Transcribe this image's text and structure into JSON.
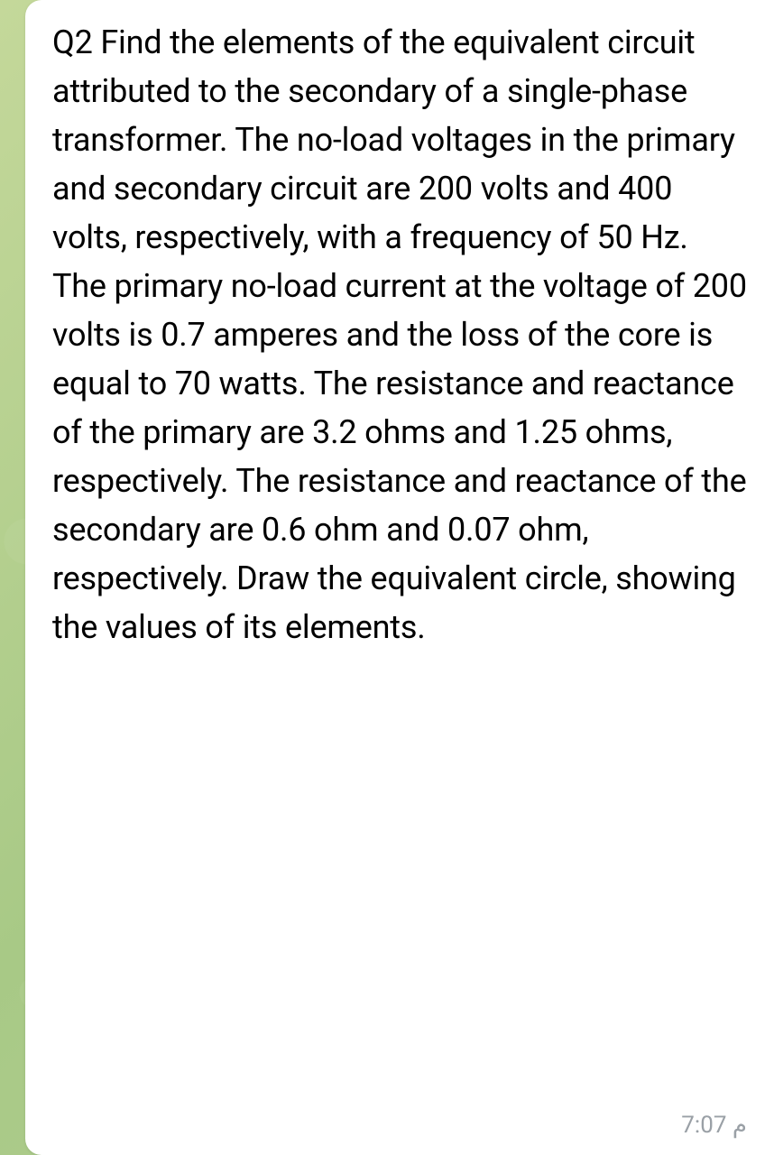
{
  "message": {
    "text": "Q2 Find the elements of the equivalent circuit attributed to the secondary of a single-phase transformer. The no-load voltages in the primary and secondary circuit are 200 volts and 400 volts, respectively, with a frequency of 50 Hz.\nThe primary no-load current at the voltage of 200 volts is 0.7 amperes and the loss of the core is equal to 70 watts.  The resistance and reactance of the primary are 3.2 ohms and 1.25 ohms, respectively.  The resistance and reactance of the secondary are 0.6 ohm and 0.07 ohm, respectively.  Draw the equivalent circle, showing the values of its elements.",
    "timestamp": "7:07",
    "timestamp_suffix": "م"
  },
  "styling": {
    "bubble_background": "#ffffff",
    "text_color": "#000000",
    "timestamp_color": "#9aa0a6",
    "background_gradient_start": "#c4d89a",
    "background_gradient_mid": "#a8c986",
    "background_gradient_end": "#b5d094",
    "font_size_message": 36,
    "font_size_timestamp": 26,
    "line_height": 1.5,
    "bubble_border_radius": 18
  }
}
